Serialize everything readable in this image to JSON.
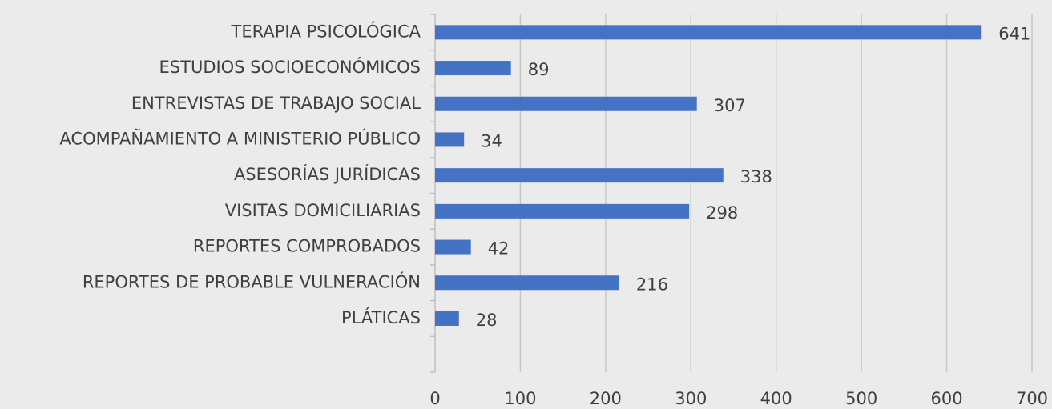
{
  "chart_data": {
    "type": "bar",
    "orientation": "horizontal",
    "categories": [
      "TERAPIA PSICOLÓGICA",
      "ESTUDIOS SOCIOECONÓMICOS",
      "ENTREVISTAS DE TRABAJO SOCIAL",
      "ACOMPAÑAMIENTO A MINISTERIO PÚBLICO",
      "ASESORÍAS JURÍDICAS",
      "VISITAS DOMICILIARIAS",
      "REPORTES COMPROBADOS",
      "REPORTES DE PROBABLE VULNERACIÓN",
      "PLÁTICAS"
    ],
    "values": [
      641,
      89,
      307,
      34,
      338,
      298,
      42,
      216,
      28
    ],
    "color": "#4472c4",
    "xlim": [
      0,
      700
    ],
    "xticks": [
      0,
      100,
      200,
      300,
      400,
      500,
      600,
      700
    ],
    "grid": true
  }
}
